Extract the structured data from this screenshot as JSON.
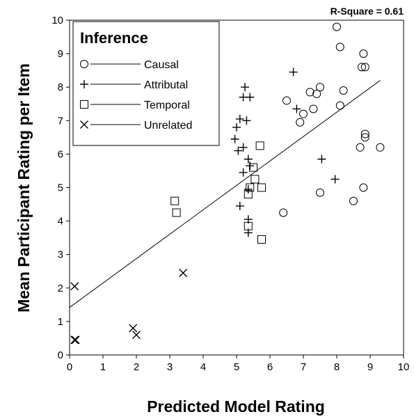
{
  "chart_data": {
    "type": "scatter",
    "xlabel": "Predicted Model Rating",
    "ylabel": "Mean Participant Rating per Item",
    "xlim": [
      0,
      10
    ],
    "ylim": [
      0,
      10
    ],
    "xticks": [
      "0",
      "1",
      "2",
      "3",
      "4",
      "5",
      "6",
      "7",
      "8",
      "9",
      "10"
    ],
    "yticks": [
      "0",
      "1",
      "2",
      "3",
      "4",
      "5",
      "6",
      "7",
      "8",
      "9",
      "10"
    ],
    "grid": false,
    "annotation": "R-Square = 0.61",
    "legend": {
      "title": "Inference",
      "position": "top-left"
    },
    "series": [
      {
        "name": "Causal",
        "marker": "circle",
        "points": [
          [
            6.4,
            4.25
          ],
          [
            6.5,
            7.6
          ],
          [
            6.9,
            6.95
          ],
          [
            7.0,
            7.2
          ],
          [
            7.2,
            7.85
          ],
          [
            7.3,
            7.35
          ],
          [
            7.4,
            7.8
          ],
          [
            7.5,
            8.0
          ],
          [
            7.5,
            4.85
          ],
          [
            8.0,
            9.8
          ],
          [
            8.1,
            9.2
          ],
          [
            8.1,
            7.45
          ],
          [
            8.2,
            7.9
          ],
          [
            8.5,
            4.6
          ],
          [
            8.7,
            6.2
          ],
          [
            8.75,
            8.6
          ],
          [
            8.8,
            9.0
          ],
          [
            8.85,
            8.6
          ],
          [
            8.8,
            5.0
          ],
          [
            8.85,
            6.5
          ],
          [
            8.85,
            6.6
          ],
          [
            9.3,
            6.2
          ]
        ]
      },
      {
        "name": "Attributal",
        "marker": "plus",
        "points": [
          [
            4.95,
            6.45
          ],
          [
            5.0,
            6.8
          ],
          [
            5.05,
            6.1
          ],
          [
            5.1,
            7.05
          ],
          [
            5.1,
            4.45
          ],
          [
            5.2,
            7.7
          ],
          [
            5.2,
            6.2
          ],
          [
            5.2,
            5.45
          ],
          [
            5.25,
            8.0
          ],
          [
            5.3,
            7.0
          ],
          [
            5.35,
            5.85
          ],
          [
            5.35,
            4.95
          ],
          [
            5.35,
            4.05
          ],
          [
            5.35,
            3.65
          ],
          [
            5.4,
            7.7
          ],
          [
            5.4,
            5.65
          ],
          [
            6.7,
            8.45
          ],
          [
            6.8,
            7.35
          ],
          [
            7.55,
            5.85
          ],
          [
            7.95,
            5.25
          ]
        ]
      },
      {
        "name": "Temporal",
        "marker": "square",
        "points": [
          [
            3.15,
            4.6
          ],
          [
            3.2,
            4.25
          ],
          [
            5.35,
            4.8
          ],
          [
            5.4,
            5.0
          ],
          [
            5.35,
            3.85
          ],
          [
            5.5,
            5.6
          ],
          [
            5.55,
            5.25
          ],
          [
            5.7,
            6.25
          ],
          [
            5.75,
            5.0
          ],
          [
            5.75,
            3.45
          ]
        ]
      },
      {
        "name": "Unrelated",
        "marker": "x",
        "points": [
          [
            0.15,
            2.05
          ],
          [
            0.15,
            0.45
          ],
          [
            0.18,
            0.45
          ],
          [
            1.9,
            0.8
          ],
          [
            2.0,
            0.6
          ],
          [
            3.4,
            2.45
          ]
        ]
      }
    ],
    "regression_line": {
      "x": [
        0,
        9.3
      ],
      "y": [
        1.42,
        8.2
      ]
    }
  }
}
